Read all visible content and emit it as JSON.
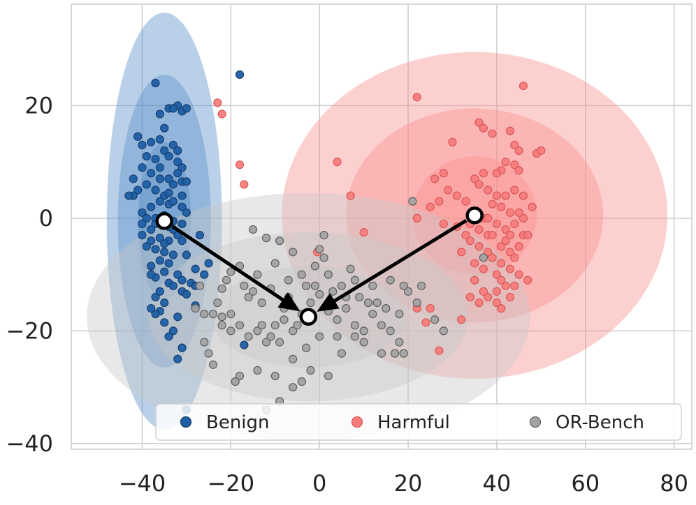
{
  "chart_data": {
    "type": "scatter",
    "title": "",
    "xlabel": "",
    "ylabel": "",
    "xlim": [
      -56,
      84
    ],
    "ylim": [
      -41,
      38
    ],
    "grid": true,
    "xticks": [
      -40,
      -20,
      0,
      20,
      40,
      60,
      80
    ],
    "yticks": [
      -40,
      -20,
      0,
      20
    ],
    "xtick_labels": [
      "−40",
      "−20",
      "0",
      "20",
      "40",
      "60",
      "80"
    ],
    "ytick_labels": [
      "−40",
      "−20",
      "0",
      "20"
    ],
    "legend": {
      "position": "bottom-right",
      "entries": [
        {
          "label": "Benign",
          "series": "benign"
        },
        {
          "label": "Harmful",
          "series": "harmful"
        },
        {
          "label": "OR-Bench",
          "series": "orbench"
        }
      ]
    },
    "series": [
      {
        "key": "benign",
        "name": "Benign",
        "color": "#1f5fa6",
        "edge": "#163f6e",
        "ellipse_color": "#5b8fc7",
        "center": [
          -35,
          -0.5
        ],
        "ellipse_radii": [
          [
            6,
            14
          ],
          [
            10.5,
            26
          ],
          [
            13,
            37
          ]
        ],
        "points": [
          [
            -37,
            24
          ],
          [
            -18,
            25.5
          ],
          [
            -36,
            18.5
          ],
          [
            -34,
            19.5
          ],
          [
            -32,
            20
          ],
          [
            -31,
            19
          ],
          [
            -33,
            19.5
          ],
          [
            -30,
            19.5
          ],
          [
            -35,
            16
          ],
          [
            -36,
            14
          ],
          [
            -38,
            13.5
          ],
          [
            -40,
            13
          ],
          [
            -41,
            14.5
          ],
          [
            -39,
            11
          ],
          [
            -37,
            10.5
          ],
          [
            -35,
            12
          ],
          [
            -33,
            13
          ],
          [
            -34,
            11
          ],
          [
            -32,
            10
          ],
          [
            -31,
            9
          ],
          [
            -32,
            8
          ],
          [
            -40,
            9
          ],
          [
            -42,
            7
          ],
          [
            -38,
            8
          ],
          [
            -36,
            7
          ],
          [
            -34,
            7
          ],
          [
            -33,
            6
          ],
          [
            -31,
            6.5
          ],
          [
            -30,
            6.5
          ],
          [
            -39,
            6
          ],
          [
            -41,
            5
          ],
          [
            -37,
            5
          ],
          [
            -35,
            4
          ],
          [
            -36,
            3
          ],
          [
            -34,
            2.5
          ],
          [
            -38,
            2
          ],
          [
            -40,
            1
          ],
          [
            -42,
            4
          ],
          [
            -43,
            4
          ],
          [
            -39,
            0
          ],
          [
            -37,
            0
          ],
          [
            -35,
            0.5
          ],
          [
            -33,
            -0.5
          ],
          [
            -31,
            -1
          ],
          [
            -36,
            -1
          ],
          [
            -40,
            -1
          ],
          [
            -38,
            -2
          ],
          [
            -36,
            -3.5
          ],
          [
            -34,
            -4
          ],
          [
            -38,
            -4
          ],
          [
            -39,
            -5
          ],
          [
            -37,
            -5.5
          ],
          [
            -35,
            -6
          ],
          [
            -33,
            -6.5
          ],
          [
            -36,
            -7.5
          ],
          [
            -34,
            -8
          ],
          [
            -38,
            -8.5
          ],
          [
            -35,
            -9.5
          ],
          [
            -37,
            -10.5
          ],
          [
            -34,
            -11.5
          ],
          [
            -32,
            -10
          ],
          [
            -31,
            -11
          ],
          [
            -33,
            -12
          ],
          [
            -31,
            -13
          ],
          [
            -30,
            -13.5
          ],
          [
            -29,
            -11.5
          ],
          [
            -28,
            -9
          ],
          [
            -30,
            -6.5
          ],
          [
            -31,
            -4
          ],
          [
            -32,
            -3
          ],
          [
            -33,
            -2
          ],
          [
            -34,
            -1.5
          ],
          [
            -36,
            -13
          ],
          [
            -37,
            -14
          ],
          [
            -35,
            -15
          ],
          [
            -36,
            -16.5
          ],
          [
            -32,
            -17.5
          ],
          [
            -35,
            -18.5
          ],
          [
            -33,
            -20
          ],
          [
            -34,
            -21
          ],
          [
            -31,
            -23
          ],
          [
            -32,
            -25
          ],
          [
            -37,
            -17
          ],
          [
            -38,
            -16
          ],
          [
            -28,
            -15.5
          ],
          [
            -26,
            -10
          ],
          [
            -25,
            -8
          ],
          [
            -27,
            -3
          ],
          [
            -31,
            2
          ],
          [
            -30,
            1
          ],
          [
            -40,
            -3
          ],
          [
            -32,
            12
          ],
          [
            -17,
            -22.5
          ],
          [
            -30,
            -34
          ],
          [
            -28,
            -12
          ],
          [
            -37,
            -1
          ],
          [
            -34,
            4.5
          ],
          [
            -33,
            3
          ],
          [
            -35,
            -4.5
          ],
          [
            -36,
            9
          ],
          [
            -31,
            4
          ],
          [
            -38,
            -10
          ]
        ]
      },
      {
        "key": "harmful",
        "name": "Harmful",
        "color": "#f87c7c",
        "edge": "#d85858",
        "ellipse_color": "#fb8f8f",
        "center": [
          35,
          0.5
        ],
        "ellipse_radii": [
          [
            14,
            10.5
          ],
          [
            29,
            19
          ],
          [
            43.5,
            29
          ]
        ],
        "points": [
          [
            -23,
            20.5
          ],
          [
            -22,
            18.5
          ],
          [
            -18,
            9.5
          ],
          [
            -17,
            6
          ],
          [
            22,
            21.5
          ],
          [
            46,
            23.5
          ],
          [
            30,
            13.5
          ],
          [
            36,
            17
          ],
          [
            37,
            16
          ],
          [
            39,
            15
          ],
          [
            43,
            15.5
          ],
          [
            44,
            13
          ],
          [
            45,
            12
          ],
          [
            49,
            11.5
          ],
          [
            50,
            12
          ],
          [
            42,
            10
          ],
          [
            44,
            9.5
          ],
          [
            45,
            8.5
          ],
          [
            41,
            8.5
          ],
          [
            40,
            8
          ],
          [
            37,
            8
          ],
          [
            35,
            7
          ],
          [
            36,
            6
          ],
          [
            38,
            5
          ],
          [
            40,
            4
          ],
          [
            42,
            4
          ],
          [
            44,
            5
          ],
          [
            46,
            4
          ],
          [
            48,
            2
          ],
          [
            46,
            0
          ],
          [
            44,
            -1
          ],
          [
            42,
            -2
          ],
          [
            40,
            -1
          ],
          [
            38,
            -3
          ],
          [
            36,
            -5
          ],
          [
            34,
            -4
          ],
          [
            32,
            -6
          ],
          [
            35,
            -8
          ],
          [
            37,
            -9
          ],
          [
            39,
            -7
          ],
          [
            41,
            -8
          ],
          [
            43,
            -9
          ],
          [
            45,
            -10
          ],
          [
            42,
            -12
          ],
          [
            40,
            -13
          ],
          [
            38,
            -14
          ],
          [
            36,
            -15
          ],
          [
            34,
            -14
          ],
          [
            43,
            -6
          ],
          [
            41,
            -5
          ],
          [
            39,
            -3
          ],
          [
            37,
            0
          ],
          [
            33,
            3
          ],
          [
            31,
            4
          ],
          [
            29,
            5
          ],
          [
            27,
            3
          ],
          [
            25,
            2
          ],
          [
            28,
            -1
          ],
          [
            22,
            0
          ],
          [
            26,
            7
          ],
          [
            28,
            8
          ],
          [
            4,
            10
          ],
          [
            7,
            4
          ],
          [
            -0.5,
            -6
          ],
          [
            10,
            -2.5
          ],
          [
            25,
            -16
          ],
          [
            24,
            -18.5
          ],
          [
            32,
            -18
          ],
          [
            41,
            -16
          ],
          [
            43,
            -14
          ],
          [
            47,
            -11
          ],
          [
            44,
            -7
          ],
          [
            45,
            -5
          ],
          [
            46,
            -3
          ],
          [
            43,
            1
          ],
          [
            41,
            2
          ],
          [
            39,
            2.5
          ],
          [
            38,
            0
          ],
          [
            36,
            -2
          ],
          [
            34,
            -1
          ],
          [
            42,
            -4
          ],
          [
            40,
            -10
          ],
          [
            44,
            -12
          ],
          [
            35,
            -11
          ],
          [
            37,
            -13
          ],
          [
            41,
            -11
          ],
          [
            43,
            -3
          ],
          [
            38,
            -6
          ],
          [
            27,
            -23.5
          ],
          [
            31,
            -1.5
          ],
          [
            33,
            -3
          ],
          [
            45,
            1
          ],
          [
            40,
            -15
          ],
          [
            47,
            -3
          ],
          [
            22,
            -16
          ]
        ]
      },
      {
        "key": "orbench",
        "name": "OR-Bench",
        "color": "#a3a3a3",
        "edge": "#5f5f5f",
        "ellipse_color": "#c9c9c9",
        "center": [
          -2.5,
          -17.5
        ],
        "ellipse_radii": [
          [
            22,
            9
          ],
          [
            36,
            15
          ],
          [
            50,
            22
          ]
        ],
        "points": [
          [
            -15,
            -2
          ],
          [
            -12,
            -3.5
          ],
          [
            -9,
            -4
          ],
          [
            -6,
            -6
          ],
          [
            -10,
            -8
          ],
          [
            -14,
            -10
          ],
          [
            -18,
            -8.5
          ],
          [
            -20,
            -9.5
          ],
          [
            -22,
            -12.5
          ],
          [
            -23,
            -15
          ],
          [
            -24,
            -17
          ],
          [
            -22,
            -17.5
          ],
          [
            -20,
            -17
          ],
          [
            -18,
            -19
          ],
          [
            -16,
            -21
          ],
          [
            -14,
            -20
          ],
          [
            -12,
            -22
          ],
          [
            -10,
            -19
          ],
          [
            -8,
            -18
          ],
          [
            -6,
            -20
          ],
          [
            -4,
            -17
          ],
          [
            -2,
            -15
          ],
          [
            0,
            -13.5
          ],
          [
            2,
            -16.5
          ],
          [
            4,
            -18
          ],
          [
            6,
            -16
          ],
          [
            8,
            -19
          ],
          [
            10,
            -20
          ],
          [
            12,
            -17
          ],
          [
            14,
            -19
          ],
          [
            16,
            -20
          ],
          [
            18,
            -22
          ],
          [
            19,
            -24
          ],
          [
            14,
            -24
          ],
          [
            10,
            -22
          ],
          [
            5,
            -24
          ],
          [
            0,
            -21
          ],
          [
            -3,
            -23
          ],
          [
            -6,
            -25
          ],
          [
            -9,
            -22
          ],
          [
            -11,
            -21
          ],
          [
            -13,
            -19
          ],
          [
            -15,
            -13
          ],
          [
            -11,
            -12.5
          ],
          [
            -7,
            -11
          ],
          [
            -4,
            -10
          ],
          [
            -1,
            -8.5
          ],
          [
            1,
            -7
          ],
          [
            0,
            -5.5
          ],
          [
            2,
            -10
          ],
          [
            5,
            -12
          ],
          [
            8,
            -11
          ],
          [
            12,
            -12
          ],
          [
            16,
            -11
          ],
          [
            20,
            -13
          ],
          [
            23,
            -12
          ],
          [
            26,
            -18
          ],
          [
            28,
            -20
          ],
          [
            22,
            -15
          ],
          [
            18,
            -17
          ],
          [
            13,
            -15
          ],
          [
            9,
            -14
          ],
          [
            -2,
            -27
          ],
          [
            -4,
            -29
          ],
          [
            -6,
            -30
          ],
          [
            -10,
            -28
          ],
          [
            2,
            -28
          ],
          [
            -14,
            -27
          ],
          [
            -18,
            -28
          ],
          [
            -25,
            -24
          ],
          [
            -26,
            -22
          ],
          [
            -24,
            -26
          ],
          [
            -19,
            -29
          ],
          [
            -26,
            -17
          ],
          [
            -28,
            -16
          ],
          [
            -27,
            -12
          ],
          [
            -21,
            -11
          ],
          [
            -17,
            -12
          ],
          [
            -13,
            -15
          ],
          [
            -7,
            -14
          ],
          [
            -3,
            -12
          ],
          [
            3,
            -13
          ],
          [
            6,
            -14
          ],
          [
            11,
            -15
          ],
          [
            15,
            -16
          ],
          [
            21,
            3
          ],
          [
            37,
            -7
          ],
          [
            -9,
            -32.5
          ],
          [
            -12,
            -34
          ],
          [
            -16,
            -14
          ],
          [
            -20,
            -20
          ],
          [
            7,
            -9
          ],
          [
            -5,
            -19
          ],
          [
            -8,
            -16
          ],
          [
            4,
            -21
          ],
          [
            8,
            -21
          ],
          [
            17,
            -24
          ],
          [
            -22,
            -19
          ],
          [
            1,
            -3
          ],
          [
            -1,
            -12
          ],
          [
            19,
            -12
          ]
        ]
      }
    ],
    "arrows": [
      {
        "from": [
          -35,
          -0.5
        ],
        "to": [
          -2.5,
          -17.5
        ]
      },
      {
        "from": [
          35,
          0.5
        ],
        "to": [
          -2.5,
          -17.5
        ]
      }
    ]
  }
}
